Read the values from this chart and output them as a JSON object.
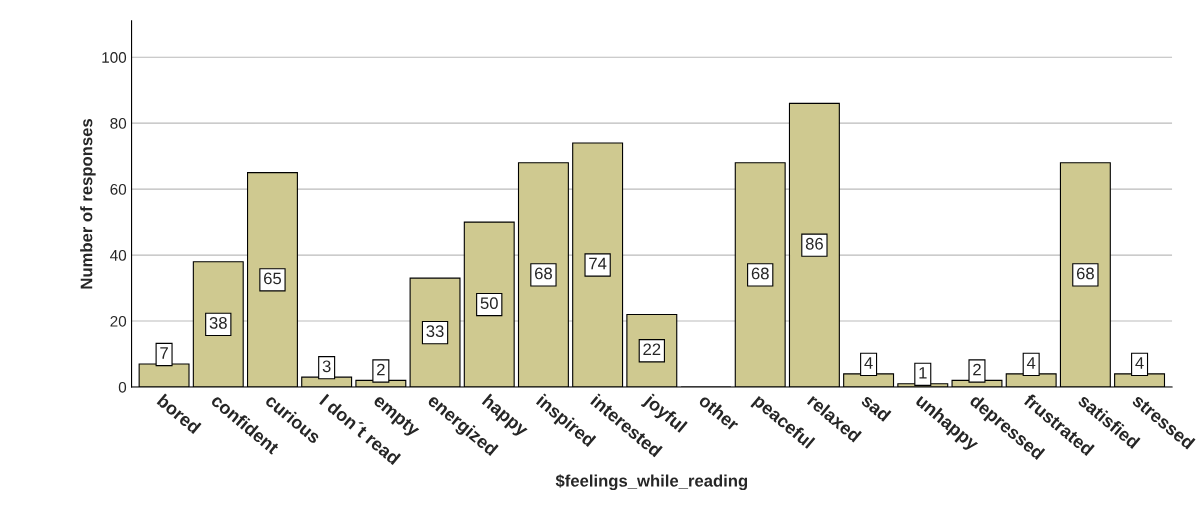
{
  "chart_data": {
    "type": "bar",
    "xlabel": "$feelings_while_reading",
    "ylabel": "Number of responses",
    "categories": [
      "bored",
      "confident",
      "curious",
      "I don´t read",
      "empty",
      "energized",
      "happy",
      "inspired",
      "interested",
      "joyful",
      "other",
      "peaceful",
      "relaxed",
      "sad",
      "unhappy",
      "depressed",
      "frustrated",
      "satisfied",
      "stressed"
    ],
    "values": [
      7,
      38,
      65,
      3,
      2,
      33,
      50,
      68,
      74,
      22,
      0,
      68,
      86,
      4,
      1,
      2,
      4,
      68,
      4
    ],
    "value_labels": [
      "7",
      "38",
      "65",
      "3",
      "2",
      "33",
      "50",
      "68",
      "74",
      "22",
      null,
      "68",
      "86",
      "4",
      "1",
      "2",
      "4",
      "68",
      "4"
    ],
    "color": "#cfc990",
    "ylim": [
      0,
      111
    ],
    "yticks": [
      0,
      20,
      40,
      60,
      80,
      100
    ],
    "grid": "y"
  }
}
